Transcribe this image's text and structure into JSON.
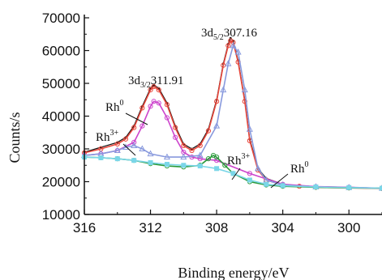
{
  "chart_data": {
    "type": "line",
    "xlabel": "Binding energy/eV",
    "ylabel": "Counts/s",
    "xlim": [
      316,
      298
    ],
    "ylim": [
      10000,
      70000
    ],
    "x_reversed": true,
    "x_ticks": [
      "316",
      "312",
      "308",
      "304",
      "300"
    ],
    "x_tick_values": [
      316,
      312,
      308,
      304,
      300
    ],
    "y_ticks": [
      "10000",
      "20000",
      "30000",
      "40000",
      "50000",
      "60000",
      "70000"
    ],
    "y_tick_values": [
      10000,
      20000,
      30000,
      40000,
      50000,
      60000,
      70000
    ],
    "grid": false,
    "legend": "none",
    "series": [
      {
        "color": "#111111",
        "marker": "dot",
        "x": [
          316,
          315,
          314,
          313.5,
          313,
          312.5,
          312,
          311.8,
          311.5,
          311,
          310.5,
          310,
          309.5,
          309,
          308.5,
          308,
          307.6,
          307.3,
          307.16,
          307,
          306.7,
          306.3,
          306,
          305.5,
          305,
          304,
          303,
          302,
          300,
          298
        ],
        "y": [
          29000,
          30500,
          32000,
          33500,
          37000,
          43000,
          48500,
          49500,
          48500,
          44000,
          37000,
          31500,
          30000,
          31500,
          36000,
          45000,
          56000,
          62000,
          63800,
          63000,
          57000,
          45000,
          33000,
          24000,
          21000,
          19200,
          18800,
          18500,
          18300,
          18000
        ]
      },
      {
        "color": "#e8473c",
        "marker": "circle",
        "x": [
          316,
          315,
          314,
          313.5,
          313,
          312.5,
          312,
          311.8,
          311.5,
          311,
          310.5,
          310,
          309.5,
          309,
          308.5,
          308,
          307.6,
          307.3,
          307.16,
          307,
          306.7,
          306.3,
          306,
          305.5,
          305,
          304,
          303,
          302,
          300,
          298
        ],
        "y": [
          28800,
          30000,
          31500,
          33000,
          36500,
          42500,
          48000,
          49000,
          48000,
          43500,
          36500,
          31000,
          29500,
          31000,
          35500,
          44500,
          55500,
          61500,
          63000,
          62500,
          56500,
          44500,
          32500,
          23500,
          20500,
          19000,
          18600,
          18300,
          18100,
          17900
        ]
      },
      {
        "name": "Rh0",
        "color": "#cc44cc",
        "marker": "circle",
        "x": [
          316,
          315,
          314,
          313,
          312.5,
          312,
          311.8,
          311.5,
          311,
          310.5,
          310,
          309.5,
          309,
          308,
          306,
          304,
          302,
          300,
          298
        ],
        "y": [
          28000,
          28500,
          29500,
          32000,
          37000,
          43000,
          44500,
          44000,
          39500,
          33500,
          29000,
          27500,
          27000,
          26500,
          22500,
          19200,
          18500,
          18300,
          18000
        ]
      },
      {
        "name": "Rh3+",
        "color": "#8899dd",
        "marker": "triangle",
        "x": [
          316,
          315,
          314,
          313.5,
          313,
          312.5,
          312,
          311,
          310,
          309,
          308,
          307.6,
          307.3,
          307,
          306.7,
          306.3,
          306,
          305.5,
          305,
          304,
          302,
          300,
          298
        ],
        "y": [
          28000,
          28500,
          29500,
          30500,
          31000,
          30000,
          28500,
          27500,
          27500,
          28000,
          37000,
          48000,
          56000,
          61500,
          59500,
          48000,
          36000,
          24000,
          20500,
          19000,
          18400,
          18200,
          18000
        ]
      },
      {
        "name": "Rh3+",
        "color": "#2a9a3a",
        "marker": "circle",
        "x": [
          316,
          315,
          314,
          313,
          312,
          311,
          310,
          309,
          308.5,
          308.2,
          308,
          307.5,
          307,
          306,
          305,
          304,
          302,
          300,
          298
        ],
        "y": [
          27500,
          27300,
          27000,
          26500,
          25500,
          24800,
          24500,
          25000,
          27000,
          28000,
          27500,
          25000,
          22500,
          20000,
          19000,
          18600,
          18300,
          18100,
          18000
        ]
      },
      {
        "name": "Rh0",
        "color": "#7ad6e8",
        "marker": "square",
        "x": [
          316,
          315,
          314,
          313,
          312,
          311,
          310,
          309,
          308,
          307,
          306,
          305,
          304,
          302,
          300,
          298
        ],
        "y": [
          27500,
          27300,
          27000,
          26500,
          25800,
          25300,
          25000,
          24800,
          24000,
          22500,
          20500,
          19200,
          18800,
          18400,
          18200,
          18000
        ]
      }
    ],
    "annotations": [
      {
        "id": "peak_52",
        "main": "3d",
        "sub": "5/2",
        "tail": "307.16"
      },
      {
        "id": "peak_32",
        "main": "3d",
        "sub": "3/2",
        "tail": "311.91"
      },
      {
        "id": "rh0_left",
        "main": "Rh",
        "sup": "0"
      },
      {
        "id": "rh3_left",
        "main": "Rh",
        "sup": "3+"
      },
      {
        "id": "rh3_right",
        "main": "Rh",
        "sup": "3+"
      },
      {
        "id": "rh0_right",
        "main": "Rh",
        "sup": "0"
      }
    ]
  }
}
